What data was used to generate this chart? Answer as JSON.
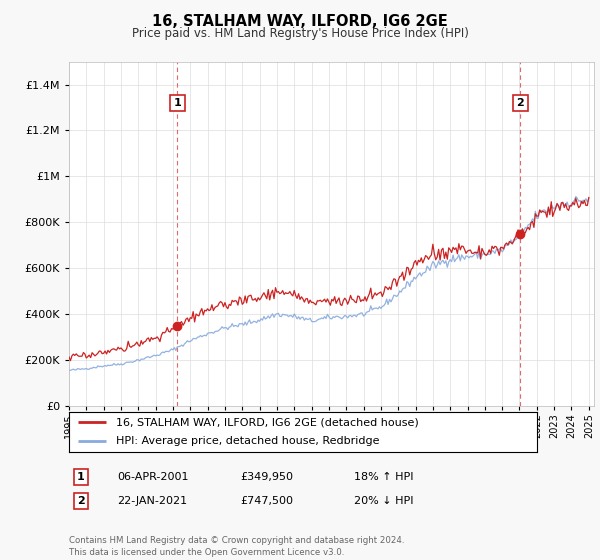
{
  "title": "16, STALHAM WAY, ILFORD, IG6 2GE",
  "subtitle": "Price paid vs. HM Land Registry's House Price Index (HPI)",
  "yticks": [
    0,
    200000,
    400000,
    600000,
    800000,
    1000000,
    1200000,
    1400000
  ],
  "ylim": [
    0,
    1500000
  ],
  "xlim": [
    1995,
    2025.3
  ],
  "sale1_year": 2001.25,
  "sale1_price": 349950,
  "sale1_date": "06-APR-2001",
  "sale1_hpi_pct": "18% ↑ HPI",
  "sale2_year": 2021.05,
  "sale2_price": 747500,
  "sale2_date": "22-JAN-2021",
  "sale2_hpi_pct": "20% ↓ HPI",
  "line1_label": "16, STALHAM WAY, ILFORD, IG6 2GE (detached house)",
  "line2_label": "HPI: Average price, detached house, Redbridge",
  "line1_color": "#cc2222",
  "line2_color": "#88aadd",
  "vline_color": "#dd4444",
  "dot_color": "#cc2222",
  "box_edge_color": "#cc2222",
  "grid_color": "#dddddd",
  "bg_color": "#f8f8f8",
  "plot_bg": "#ffffff",
  "footnote": "Contains HM Land Registry data © Crown copyright and database right 2024.\nThis data is licensed under the Open Government Licence v3.0."
}
